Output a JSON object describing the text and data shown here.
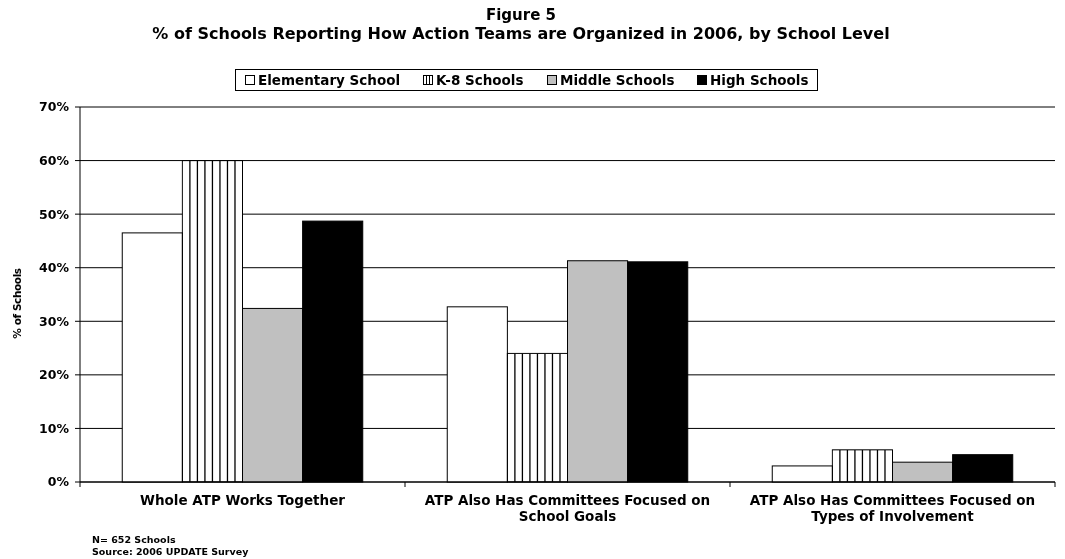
{
  "chart_data": {
    "type": "bar",
    "title": "Figure 5",
    "subtitle": "% of Schools Reporting How Action Teams are Organized in 2006, by School Level",
    "ylabel": "% of Schools",
    "categories": [
      "Whole ATP Works Together",
      "ATP Also Has Committees Focused on School Goals",
      "ATP Also Has Committees Focused on Types of Involvement"
    ],
    "series": [
      {
        "name": "Elementary School",
        "color": "#ffffff",
        "values": [
          46.5,
          32.7,
          3.0
        ]
      },
      {
        "name": "K-8 Schools",
        "color": "#000000",
        "values": [
          60.0,
          24.0,
          6.0
        ]
      },
      {
        "name": "Middle Schools",
        "color": "#c0c0c0",
        "values": [
          32.4,
          41.3,
          3.7
        ]
      },
      {
        "name": "High Schools",
        "color": "#000000",
        "values": [
          48.7,
          41.1,
          5.1
        ]
      }
    ],
    "ylim": [
      0,
      70
    ],
    "yticks": [
      {
        "value": 0,
        "label": "0%"
      },
      {
        "value": 10,
        "label": "10%"
      },
      {
        "value": 20,
        "label": "20%"
      },
      {
        "value": 30,
        "label": "30%"
      },
      {
        "value": 40,
        "label": "40%"
      },
      {
        "value": 50,
        "label": "50%"
      },
      {
        "value": 60,
        "label": "60%"
      },
      {
        "value": 70,
        "label": "70%"
      }
    ],
    "grid": "y",
    "legend": "top",
    "annotations": [
      "N= 652 Schools",
      "Source: 2006 UPDATE Survey"
    ]
  }
}
